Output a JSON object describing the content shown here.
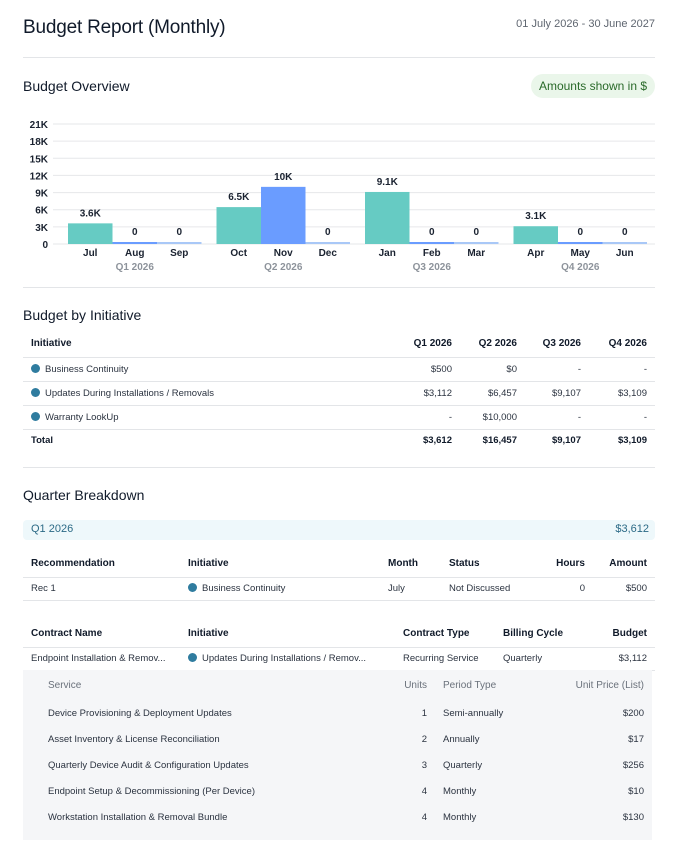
{
  "header": {
    "title": "Budget Report (Monthly)",
    "date_range": "01 July 2026 - 30 June 2027"
  },
  "overview": {
    "title": "Budget Overview",
    "currency_badge": "Amounts shown in $"
  },
  "colors": {
    "bar_month1": "#66cbc3",
    "bar_month2": "#6a9cff",
    "bar_month3": "#a9c8f7",
    "gridline": "#e6e7ea",
    "initiative_dot": "#2f7c9f",
    "badge_bg": "#eaf6ea",
    "badge_text": "#2a6a2a",
    "quarter_band_bg": "#eef8fb",
    "quarter_band_text": "#2b6a86"
  },
  "chart_data": {
    "type": "bar",
    "title": "Budget Overview",
    "xlabel": "",
    "ylabel": "",
    "ylim": [
      0,
      21000
    ],
    "yticks": [
      0,
      3000,
      6000,
      9000,
      12000,
      15000,
      18000,
      21000
    ],
    "ytick_labels": [
      "0",
      "3K",
      "6K",
      "9K",
      "12K",
      "15K",
      "18K",
      "21K"
    ],
    "grid": true,
    "groups": [
      {
        "label": "Q1 2026",
        "categories": [
          "Jul",
          "Aug",
          "Sep"
        ],
        "values": [
          3612,
          0,
          0
        ],
        "data_labels": [
          "3.6K",
          "0",
          "0"
        ]
      },
      {
        "label": "Q2 2026",
        "categories": [
          "Oct",
          "Nov",
          "Dec"
        ],
        "values": [
          6457,
          10000,
          0
        ],
        "data_labels": [
          "6.5K",
          "10K",
          "0"
        ]
      },
      {
        "label": "Q3 2026",
        "categories": [
          "Jan",
          "Feb",
          "Mar"
        ],
        "values": [
          9107,
          0,
          0
        ],
        "data_labels": [
          "9.1K",
          "0",
          "0"
        ]
      },
      {
        "label": "Q4 2026",
        "categories": [
          "Apr",
          "May",
          "Jun"
        ],
        "values": [
          3109,
          0,
          0
        ],
        "data_labels": [
          "3.1K",
          "0",
          "0"
        ]
      }
    ]
  },
  "initiative": {
    "title": "Budget by Initiative",
    "columns": [
      "Initiative",
      "Q1 2026",
      "Q2 2026",
      "Q3 2026",
      "Q4 2026"
    ],
    "rows": [
      {
        "name": "Business Continuity",
        "values": [
          "$500",
          "$0",
          "-",
          "-"
        ]
      },
      {
        "name": "Updates During Installations / Removals",
        "values": [
          "$3,112",
          "$6,457",
          "$9,107",
          "$3,109"
        ]
      },
      {
        "name": "Warranty LookUp",
        "values": [
          "-",
          "$10,000",
          "-",
          "-"
        ]
      }
    ],
    "total": {
      "label": "Total",
      "values": [
        "$3,612",
        "$16,457",
        "$9,107",
        "$3,109"
      ]
    }
  },
  "breakdown": {
    "title": "Quarter Breakdown",
    "quarter": {
      "name": "Q1 2026",
      "total": "$3,612"
    },
    "recommendations": {
      "columns": [
        "Recommendation",
        "Initiative",
        "Month",
        "Status",
        "Hours",
        "Amount"
      ],
      "rows": [
        {
          "recommendation": "Rec 1",
          "initiative": "Business Continuity",
          "month": "July",
          "status": "Not Discussed",
          "hours": "0",
          "amount": "$500"
        }
      ]
    },
    "contracts": {
      "columns": [
        "Contract Name",
        "Initiative",
        "Contract Type",
        "Billing Cycle",
        "Budget"
      ],
      "rows": [
        {
          "name": "Endpoint Installation & Remov...",
          "initiative": "Updates During Installations / Remov...",
          "type": "Recurring Service",
          "billing": "Quarterly",
          "budget": "$3,112"
        }
      ]
    },
    "services": {
      "columns": [
        "Service",
        "Units",
        "Period Type",
        "Unit Price (List)"
      ],
      "rows": [
        {
          "service": "Device Provisioning & Deployment Updates",
          "units": "1",
          "period": "Semi-annually",
          "price": "$200"
        },
        {
          "service": "Asset Inventory & License Reconciliation",
          "units": "2",
          "period": "Annually",
          "price": "$17"
        },
        {
          "service": "Quarterly Device Audit & Configuration Updates",
          "units": "3",
          "period": "Quarterly",
          "price": "$256"
        },
        {
          "service": "Endpoint Setup & Decommissioning (Per Device)",
          "units": "4",
          "period": "Monthly",
          "price": "$10"
        },
        {
          "service": "Workstation Installation & Removal Bundle",
          "units": "4",
          "period": "Monthly",
          "price": "$130"
        }
      ]
    }
  }
}
